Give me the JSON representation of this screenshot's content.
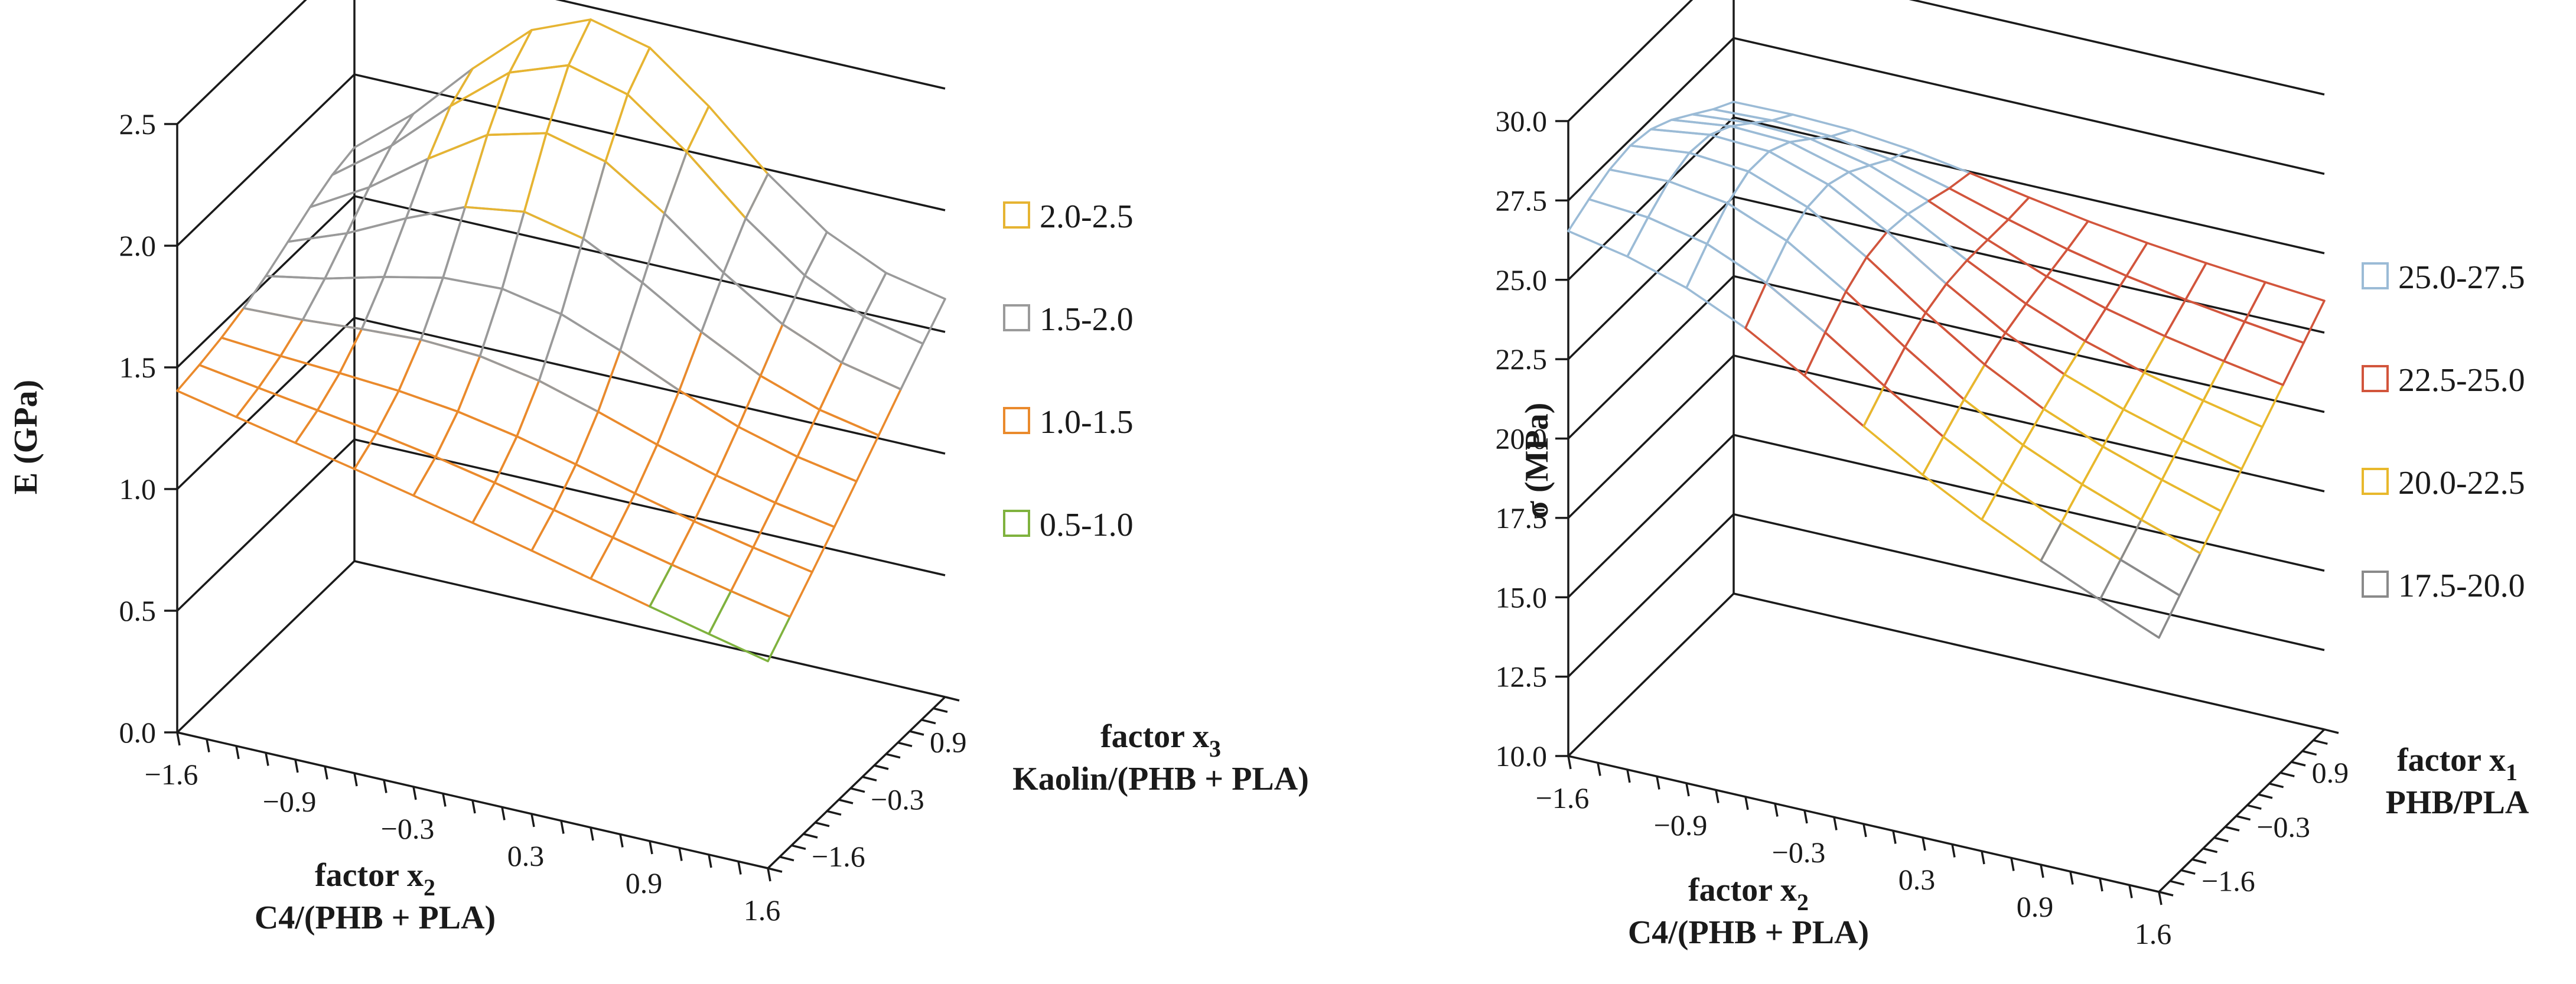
{
  "chart_data": [
    {
      "type": "surface",
      "name": "modulus",
      "ylabel": "E (GPa)",
      "zlim": [
        0.0,
        2.5
      ],
      "z_ticks": [
        "0.0",
        "0.5",
        "1.0",
        "1.5",
        "2.0",
        "2.5"
      ],
      "x": {
        "title": "factor x",
        "subscript": "2",
        "subtitle": "C4/(PHB + PLA)",
        "ticks": [
          "−1.6",
          "−0.9",
          "−0.3",
          "0.3",
          "0.9",
          "1.6"
        ]
      },
      "y": {
        "title": "factor x",
        "subscript": "3",
        "subtitle": "Kaolin/(PHB + PLA)",
        "ticks": [
          "−1.6",
          "−0.3",
          "0.9"
        ]
      },
      "legend": [
        {
          "label": "2.0-2.5",
          "color": "#e6b432",
          "lo": 2.0,
          "hi": 2.5
        },
        {
          "label": "1.5-2.0",
          "color": "#9a9a9a",
          "lo": 1.5,
          "hi": 2.0
        },
        {
          "label": "1.0-1.5",
          "color": "#ea8a2c",
          "lo": 1.0,
          "hi": 1.5
        },
        {
          "label": "0.5-1.0",
          "color": "#7fb23e",
          "lo": 0.5,
          "hi": 1.0
        }
      ],
      "surface_corners": {
        "x-1.6_y-1.6": 1.4,
        "x1.6_y-1.6": 0.85,
        "x-1.6_y1.6": 1.5,
        "x1.6_y1.6": 1.6
      },
      "surface_peak": {
        "x": -0.3,
        "y": 1.6,
        "value": 2.45
      }
    },
    {
      "type": "surface",
      "name": "strength",
      "ylabel": "σ (MPa)",
      "zlim": [
        10.0,
        30.0
      ],
      "z_ticks": [
        "10.0",
        "12.5",
        "15.0",
        "17.5",
        "20.0",
        "22.5",
        "25.0",
        "27.5",
        "30.0"
      ],
      "x": {
        "title": "factor x",
        "subscript": "2",
        "subtitle": "C4/(PHB + PLA)",
        "ticks": [
          "−1.6",
          "−0.9",
          "−0.3",
          "0.3",
          "0.9",
          "1.6"
        ]
      },
      "y": {
        "title": "factor x",
        "subscript": "1",
        "subtitle": "PHB/PLA",
        "ticks": [
          "−1.6",
          "−0.3",
          "0.9"
        ]
      },
      "legend": [
        {
          "label": "25.0-27.5",
          "color": "#9bbbd6",
          "lo": 25.0,
          "hi": 27.5
        },
        {
          "label": "22.5-25.0",
          "color": "#d2553c",
          "lo": 22.5,
          "hi": 25.0
        },
        {
          "label": "20.0-22.5",
          "color": "#e8b82c",
          "lo": 20.0,
          "hi": 22.5
        },
        {
          "label": "17.5-20.0",
          "color": "#8a8a8a",
          "lo": 17.5,
          "hi": 20.0
        }
      ],
      "surface_corners": {
        "x-1.6_y-1.6": 25.5,
        "x1.6_y-1.6": 18.0,
        "x-1.6_y1.6": 25.0,
        "x1.6_y1.6": 23.5
      },
      "surface_peak": {
        "x": -0.9,
        "y": -0.3,
        "value": 27.3
      }
    }
  ]
}
